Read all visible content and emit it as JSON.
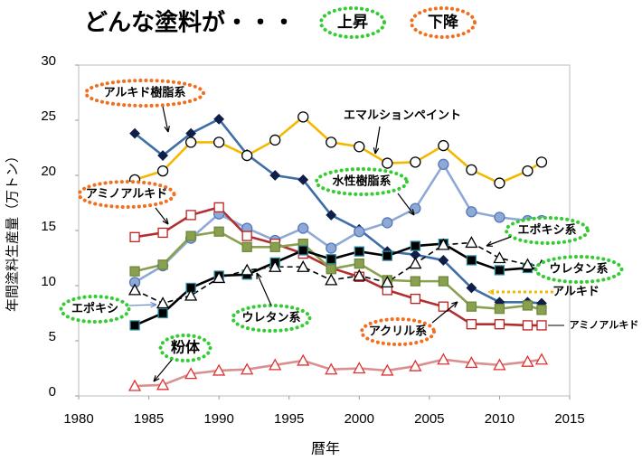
{
  "chart_data": {
    "type": "line",
    "title": "どんな塗料が・・・",
    "legend": [
      {
        "label": "上昇",
        "color": "#33cc33"
      },
      {
        "label": "下降",
        "color": "#f07020"
      }
    ],
    "x_label": "暦年",
    "y_label": "年間塗料生産量（万トン）",
    "xlim": [
      1980,
      2015
    ],
    "xticks": [
      1980,
      1985,
      1990,
      1995,
      2000,
      2005,
      2010,
      2015
    ],
    "ylim": [
      0,
      30
    ],
    "yticks": [
      0,
      5,
      10,
      15,
      20,
      25,
      30
    ],
    "x": [
      1984,
      1986,
      1988,
      1990,
      1992,
      1994,
      1996,
      1998,
      2000,
      2002,
      2004,
      2006,
      2008,
      2010,
      2012,
      2013
    ],
    "series": [
      {
        "name": "アルキド樹脂系",
        "color": "#3f6ea6",
        "marker": "diamond",
        "marker_fill": "#0f1f4a",
        "marker_stroke": "#0f1f4a",
        "values": [
          23.8,
          21.8,
          23.8,
          25.1,
          21.9,
          20.0,
          19.6,
          16.4,
          15.1,
          13.1,
          12.8,
          12.3,
          9.8,
          8.5,
          8.5,
          8.4
        ]
      },
      {
        "name": "エマルションペイント",
        "color": "#f5b800",
        "marker": "circle",
        "marker_fill": "#ffffff",
        "marker_stroke": "#000000",
        "values": [
          19.6,
          20.4,
          23.0,
          23.0,
          21.8,
          23.2,
          25.3,
          23.0,
          22.6,
          21.1,
          21.2,
          22.7,
          20.5,
          19.3,
          20.4,
          21.2
        ]
      },
      {
        "name": "水性樹脂系",
        "color": "#8fa9d6",
        "marker": "circle",
        "marker_fill": "#8fa9d6",
        "marker_stroke": "#5578b8",
        "values": [
          10.3,
          11.8,
          14.3,
          16.5,
          15.2,
          14.1,
          15.2,
          13.4,
          14.9,
          15.7,
          17.0,
          21.0,
          16.7,
          16.2,
          15.9,
          15.9
        ]
      },
      {
        "name": "アミノアルキド",
        "color": "#b03030",
        "marker": "square",
        "marker_fill": "#ffffff",
        "marker_stroke": "#c02020",
        "values": [
          14.4,
          14.8,
          16.4,
          17.1,
          14.5,
          13.8,
          12.9,
          11.6,
          10.8,
          9.6,
          8.8,
          8.1,
          6.5,
          6.5,
          6.4,
          6.4
        ]
      },
      {
        "name": "ウレタン系",
        "color": "#8aa050",
        "marker": "square",
        "marker_fill": "#8aa050",
        "marker_stroke": "#6e8a3a",
        "values": [
          11.3,
          11.9,
          14.5,
          14.9,
          13.5,
          13.5,
          13.8,
          11.5,
          12.0,
          10.5,
          10.4,
          10.4,
          8.1,
          7.9,
          8.2,
          7.8
        ]
      },
      {
        "name": "アクリル系",
        "color": "#000000",
        "marker": "square",
        "marker_fill": "#000000",
        "marker_stroke": "#2a8a9a",
        "values": [
          6.4,
          7.5,
          9.8,
          10.9,
          11.0,
          12.1,
          13.2,
          12.4,
          13.1,
          12.7,
          13.6,
          13.8,
          12.3,
          11.4,
          11.6,
          11.5
        ]
      },
      {
        "name": "エポキシ系",
        "color": "#000000",
        "dash": true,
        "marker": "triangle",
        "marker_fill": "#ffffff",
        "marker_stroke": "#000000",
        "values": [
          9.6,
          8.4,
          9.1,
          10.7,
          11.4,
          11.7,
          11.7,
          10.5,
          10.9,
          10.3,
          12.0,
          13.7,
          13.9,
          12.5,
          11.9,
          11.8
        ]
      },
      {
        "name": "粉体",
        "color": "#d89090",
        "marker": "triangle",
        "marker_fill": "#ffffff",
        "marker_stroke": "#e03030",
        "values": [
          0.9,
          1.0,
          2.0,
          2.3,
          2.4,
          2.8,
          3.2,
          2.4,
          2.5,
          2.3,
          2.7,
          3.3,
          3.0,
          2.8,
          3.1,
          3.3
        ]
      }
    ],
    "annotations": [
      "アルキド",
      "アミノアルキド",
      "エポキシ",
      "ウレタン系"
    ]
  }
}
